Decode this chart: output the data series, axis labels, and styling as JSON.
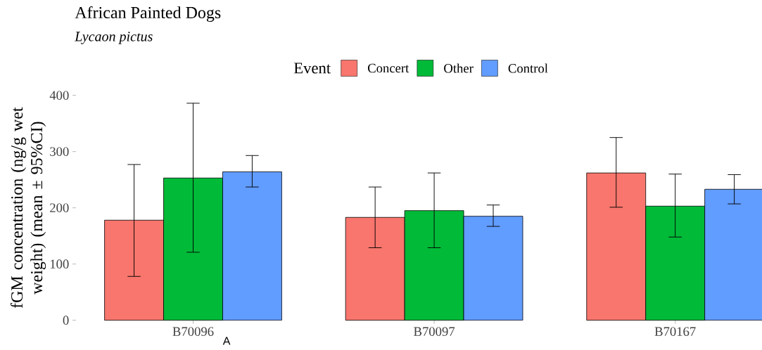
{
  "chart_data": {
    "type": "bar",
    "title": "African Painted Dogs",
    "subtitle": "*Lycaon pictus*",
    "ylabel": "fGM concentration (ng/g wet weight) (mean ± 95%CI)",
    "legend_title": "Event",
    "legend": "top",
    "categories": [
      "B70096",
      "B70097",
      "B70167"
    ],
    "series": [
      {
        "name": "Concert",
        "color": "#f8766d",
        "values": [
          178,
          183,
          262
        ],
        "errors": [
          [
            78,
            277
          ],
          [
            129,
            237
          ],
          [
            201,
            325
          ]
        ]
      },
      {
        "name": "Other",
        "color": "#00ba38",
        "values": [
          253,
          195,
          203
        ],
        "errors": [
          [
            121,
            386
          ],
          [
            129,
            262
          ],
          [
            148,
            260
          ]
        ]
      },
      {
        "name": "Control",
        "color": "#619cff",
        "values": [
          264,
          185,
          233
        ],
        "errors": [
          [
            237,
            293
          ],
          [
            167,
            205
          ],
          [
            207,
            259
          ]
        ]
      }
    ],
    "ylim": [
      0,
      400
    ],
    "yticks": [
      0,
      100,
      200,
      300,
      400
    ],
    "annotations": [
      "A"
    ]
  }
}
